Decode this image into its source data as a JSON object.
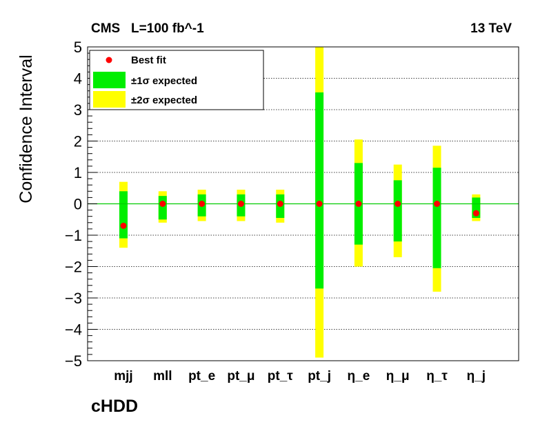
{
  "chart_data": {
    "type": "errorbar",
    "header_left": "CMS   L=100 fb^-1",
    "header_right": "13 TeV",
    "ylabel": "Confidence Interval",
    "xlabel": "cHDD",
    "ylim": [
      -5,
      5
    ],
    "yticks": [
      "5",
      "4",
      "3",
      "2",
      "1",
      "0",
      "−1",
      "−2",
      "−3",
      "−4",
      "−5"
    ],
    "grid": "horizontal dotted",
    "legend_position": "top-left",
    "legend": {
      "best_fit": "Best fit",
      "one_sigma": "±1σ expected",
      "two_sigma": "±2σ expected"
    },
    "colors": {
      "best_fit": "#ff0000",
      "one_sigma": "#00ee00",
      "two_sigma": "#ffff00",
      "zero_line": "#00cc00"
    },
    "points": [
      {
        "label": "mjj",
        "best": -0.7,
        "one": [
          -1.1,
          0.4
        ],
        "two": [
          -1.4,
          0.7
        ]
      },
      {
        "label": "mll",
        "best": 0.0,
        "one": [
          -0.5,
          0.25
        ],
        "two": [
          -0.6,
          0.4
        ]
      },
      {
        "label": "pt_e",
        "best": 0.0,
        "one": [
          -0.4,
          0.3
        ],
        "two": [
          -0.55,
          0.45
        ]
      },
      {
        "label": "pt_μ",
        "best": 0.0,
        "one": [
          -0.4,
          0.3
        ],
        "two": [
          -0.55,
          0.45
        ]
      },
      {
        "label": "pt_τ",
        "best": 0.0,
        "one": [
          -0.45,
          0.3
        ],
        "two": [
          -0.6,
          0.45
        ]
      },
      {
        "label": "pt_j",
        "best": 0.0,
        "one": [
          -2.7,
          3.55
        ],
        "two": [
          -4.9,
          5.0
        ]
      },
      {
        "label": "η_e",
        "best": 0.0,
        "one": [
          -1.3,
          1.3
        ],
        "two": [
          -2.0,
          2.05
        ]
      },
      {
        "label": "η_μ",
        "best": 0.0,
        "one": [
          -1.2,
          0.75
        ],
        "two": [
          -1.7,
          1.25
        ]
      },
      {
        "label": "η_τ",
        "best": 0.0,
        "one": [
          -2.05,
          1.15
        ],
        "two": [
          -2.8,
          1.85
        ]
      },
      {
        "label": "η_j",
        "best": -0.3,
        "one": [
          -0.45,
          0.2
        ],
        "two": [
          -0.55,
          0.3
        ]
      }
    ]
  }
}
